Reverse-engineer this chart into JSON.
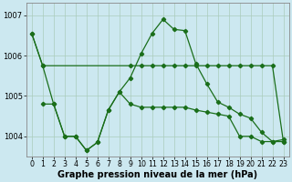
{
  "xlabel": "Graphe pression niveau de la mer (hPa)",
  "background_color": "#cce8f0",
  "grid_color": "#aaccbb",
  "line_color": "#1a6e1a",
  "ylim": [
    1003.5,
    1007.3
  ],
  "xlim": [
    -0.5,
    23.5
  ],
  "yticks": [
    1004,
    1005,
    1006,
    1007
  ],
  "xticks": [
    0,
    1,
    2,
    3,
    4,
    5,
    6,
    7,
    8,
    9,
    10,
    11,
    12,
    13,
    14,
    15,
    16,
    17,
    18,
    19,
    20,
    21,
    22,
    23
  ],
  "line_main_x": [
    0,
    1,
    2,
    3,
    4,
    5,
    6,
    7,
    8,
    9,
    10,
    11,
    12,
    13,
    14,
    15,
    16,
    17,
    18,
    19,
    20,
    21,
    22,
    23
  ],
  "line_main_y": [
    1006.55,
    1005.75,
    1004.8,
    1004.0,
    1004.0,
    1003.65,
    1003.85,
    1004.65,
    1005.1,
    1005.45,
    1006.05,
    1006.55,
    1006.9,
    1006.65,
    1006.62,
    1005.8,
    1005.3,
    1004.85,
    1004.72,
    1004.55,
    1004.45,
    1004.1,
    1003.87,
    1003.92
  ],
  "line_flat_x": [
    0,
    1,
    9,
    10,
    11,
    12,
    13,
    14,
    15,
    16,
    17,
    18,
    19,
    20,
    21,
    22,
    23
  ],
  "line_flat_y": [
    1006.55,
    1005.75,
    1005.75,
    1005.75,
    1005.75,
    1005.75,
    1005.75,
    1005.75,
    1005.75,
    1005.75,
    1005.75,
    1005.75,
    1005.75,
    1005.75,
    1005.75,
    1005.75,
    1003.87
  ],
  "line_low_x": [
    1,
    2,
    3,
    4,
    5,
    6,
    7,
    8,
    9,
    10,
    11,
    12,
    13,
    14,
    15,
    16,
    17,
    18,
    19,
    20,
    21,
    22,
    23
  ],
  "line_low_y": [
    1004.8,
    1004.8,
    1004.0,
    1004.0,
    1003.65,
    1003.85,
    1004.65,
    1005.1,
    1004.8,
    1004.72,
    1004.72,
    1004.72,
    1004.72,
    1004.72,
    1004.65,
    1004.6,
    1004.55,
    1004.5,
    1004.0,
    1004.0,
    1003.87,
    1003.87,
    1003.87
  ],
  "tick_fontsize": 6,
  "xlabel_fontsize": 7,
  "lw": 0.9,
  "ms": 2.2
}
